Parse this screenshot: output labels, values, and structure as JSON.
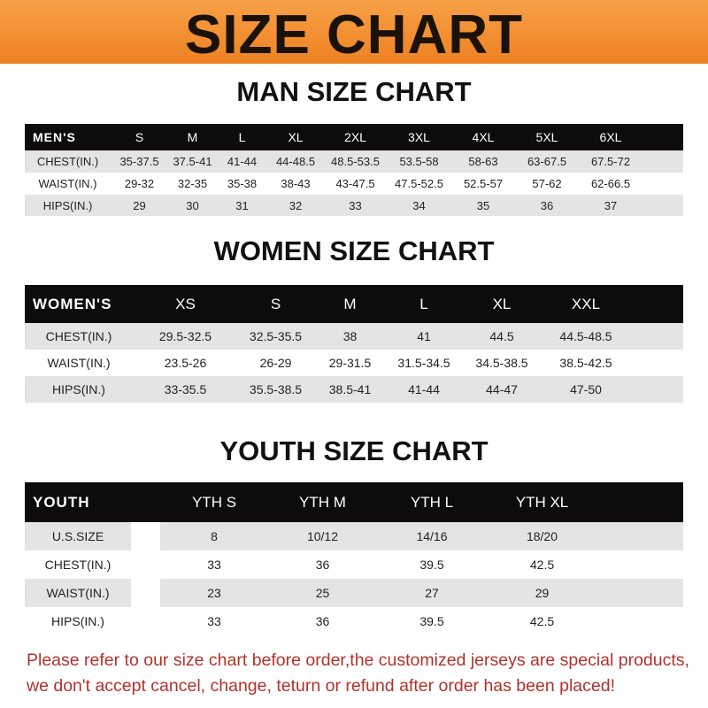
{
  "banner": {
    "title": "SIZE CHART"
  },
  "men": {
    "title": "MAN SIZE CHART",
    "header": [
      "MEN'S",
      "S",
      "M",
      "L",
      "XL",
      "2XL",
      "3XL",
      "4XL",
      "5XL",
      "6XL"
    ],
    "rows": [
      [
        "CHEST(IN.)",
        "35-37.5",
        "37.5-41",
        "41-44",
        "44-48.5",
        "48.5-53.5",
        "53.5-58",
        "58-63",
        "63-67.5",
        "67.5-72"
      ],
      [
        "WAIST(IN.)",
        "29-32",
        "32-35",
        "35-38",
        "38-43",
        "43-47.5",
        "47.5-52.5",
        "52.5-57",
        "57-62",
        "62-66.5"
      ],
      [
        "HIPS(IN.)",
        "29",
        "30",
        "31",
        "32",
        "33",
        "34",
        "35",
        "36",
        "37"
      ]
    ]
  },
  "women": {
    "title": "WOMEN SIZE CHART",
    "header": [
      "WOMEN'S",
      "XS",
      "S",
      "M",
      "L",
      "XL",
      "XXL"
    ],
    "rows": [
      [
        "CHEST(IN.)",
        "29.5-32.5",
        "32.5-35.5",
        "38",
        "41",
        "44.5",
        "44.5-48.5"
      ],
      [
        "WAIST(IN.)",
        "23.5-26",
        "26-29",
        "29-31.5",
        "31.5-34.5",
        "34.5-38.5",
        "38.5-42.5"
      ],
      [
        "HIPS(IN.)",
        "33-35.5",
        "35.5-38.5",
        "38.5-41",
        "41-44",
        "44-47",
        "47-50"
      ]
    ]
  },
  "youth": {
    "title": "YOUTH SIZE CHART",
    "header": [
      "YOUTH",
      "YTH S",
      "YTH M",
      "YTH L",
      "YTH XL"
    ],
    "rows": [
      [
        "U.S.SIZE",
        "8",
        "10/12",
        "14/16",
        "18/20"
      ],
      [
        "CHEST(IN.)",
        "33",
        "36",
        "39.5",
        "42.5"
      ],
      [
        "WAIST(IN.)",
        "23",
        "25",
        "27",
        "29"
      ],
      [
        "HIPS(IN.)",
        "33",
        "36",
        "39.5",
        "42.5"
      ]
    ]
  },
  "footer": {
    "line1": "Please refer to our size chart before order,the customized jerseys are special products,",
    "line2": "we don't accept cancel, change, teturn or refund after order has been placed!"
  },
  "colors": {
    "banner": "#ee8122",
    "header_row": "#0d0b0b",
    "stripe": "#e4e4e4",
    "notice": "#b3322b"
  }
}
